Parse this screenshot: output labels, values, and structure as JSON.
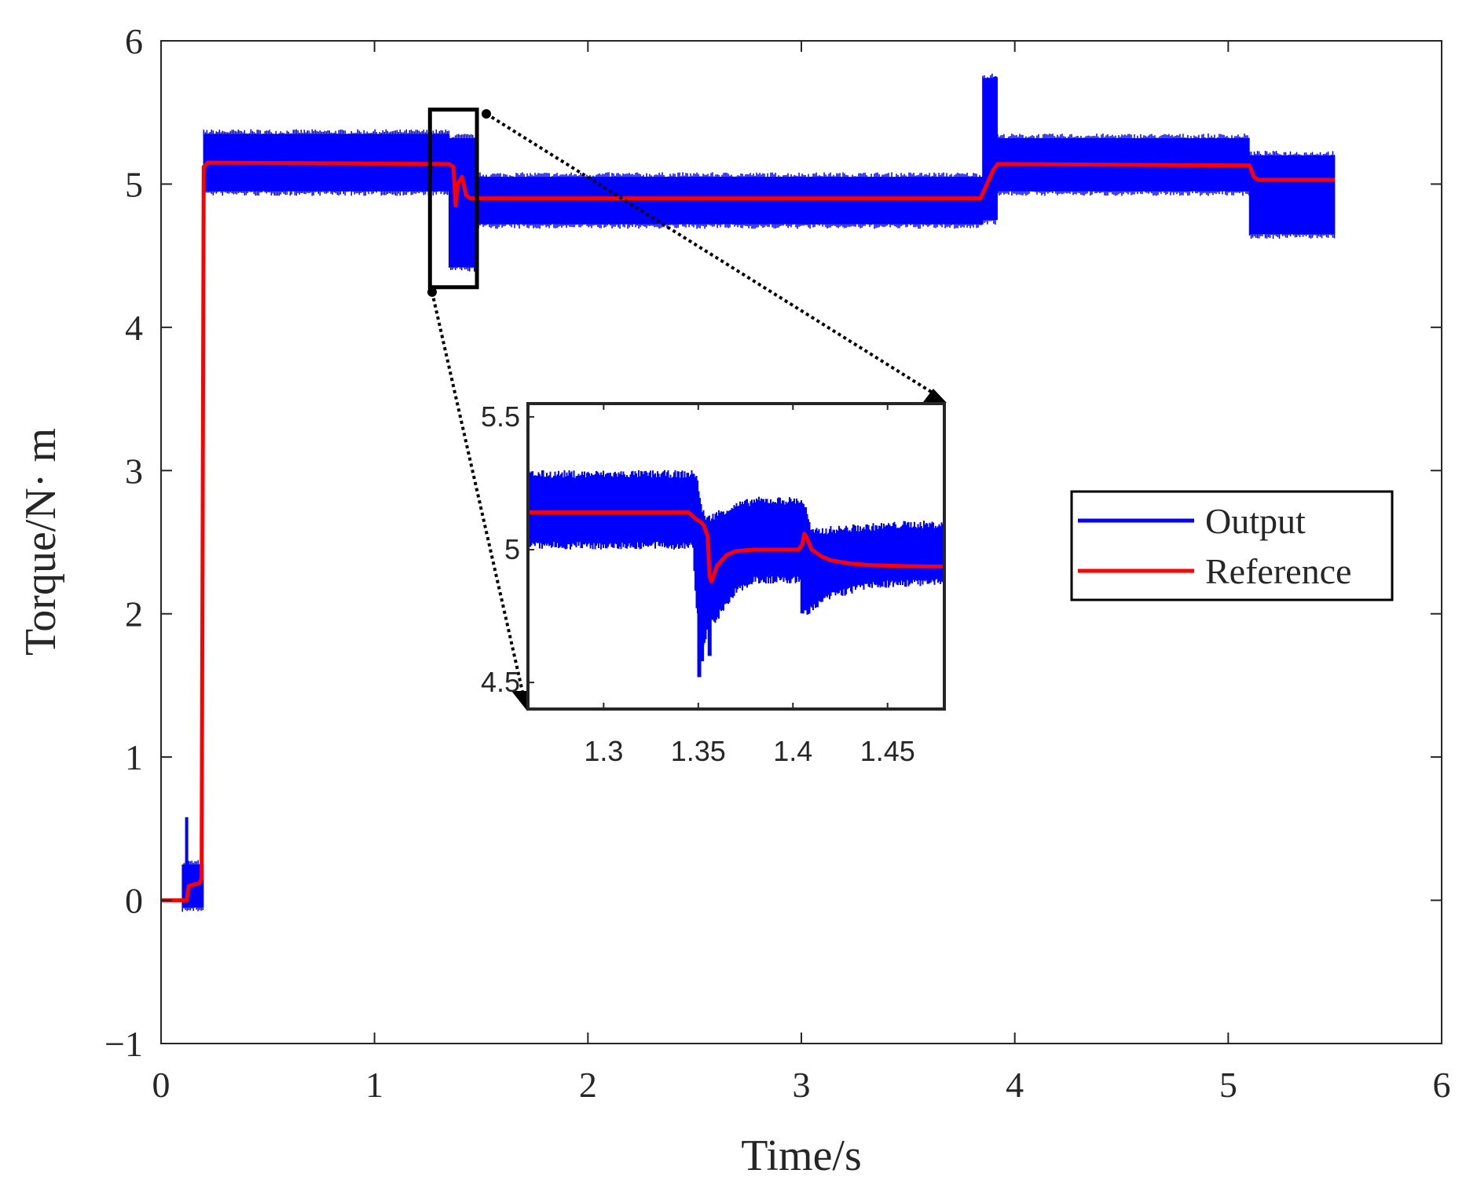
{
  "chart_data": [
    {
      "type": "line",
      "name": "main",
      "title": "",
      "xlabel": "Time/s",
      "ylabel": "Torque/N· m",
      "xlim": [
        0,
        6
      ],
      "ylim": [
        -1,
        6
      ],
      "xticks": [
        0,
        1,
        2,
        3,
        4,
        5,
        6
      ],
      "xtick_labels": [
        "0",
        "1",
        "2",
        "3",
        "4",
        "5",
        "6"
      ],
      "yticks": [
        -1,
        0,
        1,
        2,
        3,
        4,
        5,
        6
      ],
      "ytick_labels": [
        "−1",
        "0",
        "1",
        "2",
        "3",
        "4",
        "5",
        "6"
      ],
      "grid": false,
      "legend": {
        "location": "right",
        "entries": [
          "Output",
          "Reference"
        ]
      },
      "zoom_box": {
        "x": [
          1.26,
          1.48
        ],
        "y": [
          4.28,
          5.52
        ]
      },
      "series": [
        {
          "name": "Output",
          "color": "#0000ff",
          "style": "band",
          "segments": [
            {
              "x": [
                0.1,
                0.2
              ],
              "y_low": -0.05,
              "y_high": 0.25,
              "spikes": [
                [
                  0.12,
                  0.58
                ],
                [
                  0.18,
                  -0.05
                ]
              ]
            },
            {
              "x": [
                0.2,
                1.35
              ],
              "y_low": 4.95,
              "y_high": 5.35
            },
            {
              "x": [
                1.35,
                1.48
              ],
              "y_low": 4.42,
              "y_high": 5.32,
              "spikes": [
                [
                  1.36,
                  4.42
                ],
                [
                  1.41,
                  4.58
                ]
              ]
            },
            {
              "x": [
                1.48,
                3.85
              ],
              "y_low": 4.72,
              "y_high": 5.05
            },
            {
              "x": [
                3.85,
                3.92
              ],
              "y_low": 4.75,
              "y_high": 5.74,
              "spikes": [
                [
                  3.87,
                  5.62
                ],
                [
                  3.91,
                  5.75
                ]
              ]
            },
            {
              "x": [
                3.92,
                5.1
              ],
              "y_low": 4.95,
              "y_high": 5.32
            },
            {
              "x": [
                5.1,
                5.5
              ],
              "y_low": 4.65,
              "y_high": 5.2,
              "spikes": [
                [
                  5.11,
                  4.65
                ]
              ]
            }
          ]
        },
        {
          "name": "Reference",
          "color": "#ff0000",
          "x": [
            0,
            0.12,
            0.13,
            0.18,
            0.19,
            0.2,
            0.22,
            1.35,
            1.37,
            1.38,
            1.39,
            1.41,
            1.43,
            1.45,
            3.84,
            3.87,
            3.9,
            3.92,
            5.1,
            5.12,
            5.14,
            5.5
          ],
          "y": [
            0,
            0,
            0.1,
            0.12,
            0.15,
            5.12,
            5.15,
            5.14,
            5.12,
            4.85,
            5.0,
            5.05,
            4.92,
            4.9,
            4.9,
            5.0,
            5.1,
            5.14,
            5.13,
            5.05,
            5.03,
            5.03
          ]
        }
      ]
    },
    {
      "type": "line",
      "name": "inset",
      "title": "",
      "xlim": [
        1.26,
        1.48
      ],
      "ylim": [
        4.4,
        5.55
      ],
      "xticks": [
        1.3,
        1.35,
        1.4,
        1.45
      ],
      "xtick_labels": [
        "1.3",
        "1.35",
        "1.4",
        "1.45"
      ],
      "yticks": [
        4.5,
        5,
        5.5
      ],
      "ytick_labels": [
        "4.5",
        "5",
        "5.5"
      ],
      "grid": false,
      "series": [
        {
          "name": "Output",
          "color": "#0000ff",
          "style": "band",
          "x": [
            1.26,
            1.344,
            1.347,
            1.349,
            1.352,
            1.355,
            1.36,
            1.37,
            1.38,
            1.404,
            1.406,
            1.41,
            1.42,
            1.44,
            1.46,
            1.481
          ],
          "y_low": [
            5.03,
            5.03,
            5.03,
            4.8,
            4.63,
            4.72,
            4.76,
            4.86,
            4.9,
            4.9,
            4.78,
            4.79,
            4.84,
            4.88,
            4.89,
            4.89
          ],
          "y_high": [
            5.27,
            5.27,
            5.27,
            5.27,
            5.13,
            5.1,
            5.12,
            5.15,
            5.17,
            5.17,
            5.16,
            5.05,
            5.06,
            5.07,
            5.08,
            5.08
          ],
          "spikes": [
            [
              1.3505,
              4.52
            ],
            [
              1.352,
              4.58
            ],
            [
              1.356,
              4.6
            ],
            [
              1.405,
              4.76
            ]
          ]
        },
        {
          "name": "Reference",
          "color": "#ff0000",
          "x": [
            1.26,
            1.345,
            1.348,
            1.352,
            1.353,
            1.355,
            1.356,
            1.357,
            1.36,
            1.365,
            1.37,
            1.38,
            1.39,
            1.403,
            1.405,
            1.406,
            1.407,
            1.41,
            1.415,
            1.42,
            1.43,
            1.44,
            1.45,
            1.46,
            1.47,
            1.48
          ],
          "y": [
            5.14,
            5.14,
            5.12,
            5.1,
            5.09,
            5.05,
            4.9,
            4.88,
            4.94,
            4.98,
            4.995,
            5.0,
            5.0,
            5.0,
            5.02,
            5.06,
            5.05,
            5.0,
            4.975,
            4.96,
            4.948,
            4.942,
            4.94,
            4.938,
            4.937,
            4.937
          ]
        }
      ]
    }
  ],
  "colors": {
    "output": "#0000ff",
    "reference": "#ff0000",
    "axis": "#262626"
  }
}
